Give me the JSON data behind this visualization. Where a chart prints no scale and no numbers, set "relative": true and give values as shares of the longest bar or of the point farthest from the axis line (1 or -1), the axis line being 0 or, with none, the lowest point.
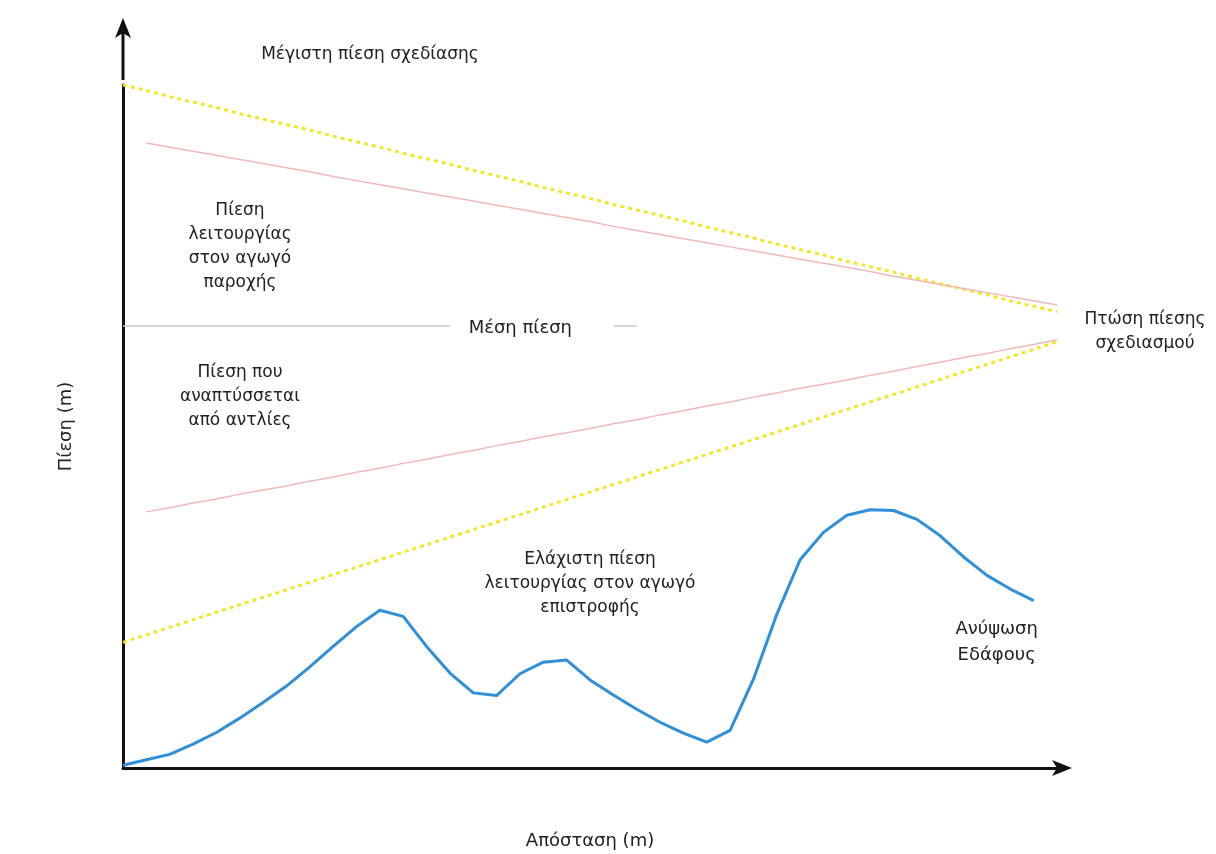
{
  "chart_data": {
    "type": "line",
    "relative": true,
    "xlabel": "Απόσταση (m)",
    "ylabel": "Πίεση (m)",
    "marker": "none",
    "categories": [
      null,
      null,
      null,
      null,
      null,
      null,
      null,
      null,
      null,
      null,
      null,
      null,
      null,
      null,
      null,
      null,
      null,
      null,
      null,
      null,
      null,
      null,
      null,
      null,
      null,
      null,
      null,
      null,
      null,
      null,
      null,
      null,
      null,
      null,
      null,
      null,
      null,
      null,
      null,
      null,
      null
    ],
    "series": [
      {
        "color": "#f2e628",
        "line_style": "dashed",
        "values": [
          1,
          0.992,
          0.983,
          0.975,
          0.967,
          0.958,
          0.95,
          0.942,
          0.934,
          0.925,
          0.917,
          0.909,
          0.9,
          0.892,
          0.884,
          0.875,
          0.867,
          0.859,
          0.85,
          0.842,
          0.834,
          0.825,
          0.817,
          0.809,
          0.801,
          0.792,
          0.784,
          0.776,
          0.767,
          0.759,
          0.751,
          0.742,
          0.734,
          0.726,
          0.717,
          0.709,
          0.701,
          0.693,
          0.684,
          0.676,
          0.668
        ]
      },
      {
        "color": "#f2e628",
        "line_style": "dashed",
        "values": [
          0.184,
          0.195,
          0.206,
          0.217,
          0.228,
          0.239,
          0.25,
          0.261,
          0.272,
          0.283,
          0.294,
          0.305,
          0.316,
          0.327,
          0.338,
          0.349,
          0.36,
          0.371,
          0.382,
          0.393,
          0.404,
          0.415,
          0.426,
          0.437,
          0.448,
          0.459,
          0.47,
          0.481,
          0.492,
          0.503,
          0.514,
          0.525,
          0.536,
          0.547,
          0.558,
          0.569,
          0.58,
          0.591,
          0.602,
          0.613,
          0.624
        ]
      },
      {
        "color": "#f2b8b8",
        "line_style": "solid",
        "values": [
          null,
          0.915,
          0.909,
          0.903,
          0.897,
          0.891,
          0.885,
          0.879,
          0.873,
          0.866,
          0.86,
          0.854,
          0.848,
          0.842,
          0.836,
          0.83,
          0.824,
          0.818,
          0.812,
          0.806,
          0.8,
          0.793,
          0.787,
          0.781,
          0.775,
          0.769,
          0.763,
          0.757,
          0.751,
          0.745,
          0.739,
          0.733,
          0.727,
          0.72,
          0.714,
          0.708,
          0.702,
          0.696,
          0.69,
          0.684,
          0.678
        ]
      },
      {
        "color": "#f2b8b8",
        "line_style": "solid",
        "values": [
          null,
          0.375,
          0.381,
          0.388,
          0.394,
          0.401,
          0.407,
          0.413,
          0.42,
          0.426,
          0.433,
          0.439,
          0.446,
          0.452,
          0.459,
          0.465,
          0.472,
          0.478,
          0.485,
          0.491,
          0.497,
          0.504,
          0.51,
          0.517,
          0.523,
          0.53,
          0.536,
          0.543,
          0.549,
          0.556,
          0.562,
          0.568,
          0.575,
          0.581,
          0.588,
          0.594,
          0.601,
          0.607,
          0.614,
          0.62,
          0.627
        ]
      },
      {
        "name": "Μέση πίεση",
        "color": "#c8c8c8",
        "line_style": "solid",
        "values": [
          0.647,
          0.647,
          0.647,
          0.647,
          0.647,
          0.647,
          0.647,
          0.647,
          0.647,
          0.647,
          0.647,
          0.647,
          0.647,
          0.647,
          0.647,
          null,
          null,
          null,
          null,
          null,
          null,
          0.647,
          0.647,
          null,
          null,
          null,
          null,
          null,
          null,
          null,
          null,
          null,
          null,
          null,
          null,
          null,
          null,
          null,
          null,
          null,
          null
        ]
      },
      {
        "name": "Ανύψωση Εδάφους",
        "color": "#2f8fd8",
        "line_style": "solid",
        "values": [
          0.004,
          0.012,
          0.02,
          0.035,
          0.052,
          0.073,
          0.096,
          0.12,
          0.148,
          0.178,
          0.207,
          0.231,
          0.222,
          0.178,
          0.139,
          0.11,
          0.106,
          0.138,
          0.155,
          0.158,
          0.129,
          0.107,
          0.086,
          0.067,
          0.051,
          0.038,
          0.055,
          0.13,
          0.225,
          0.305,
          0.345,
          0.37,
          0.378,
          0.377,
          0.364,
          0.34,
          0.309,
          0.282,
          0.262,
          0.245,
          null
        ]
      }
    ],
    "annotations": [
      "Μέγιστη πίεση σχεδίασης",
      "Πίεση λειτουργίας στον αγωγό παροχής",
      "Πίεση που αναπτύσσεται από αντλίες",
      "Ελάχιστη πίεση λειτουργίας στον αγωγό επιστροφής",
      "Πτώση πίεσης σχεδιασμού"
    ]
  }
}
